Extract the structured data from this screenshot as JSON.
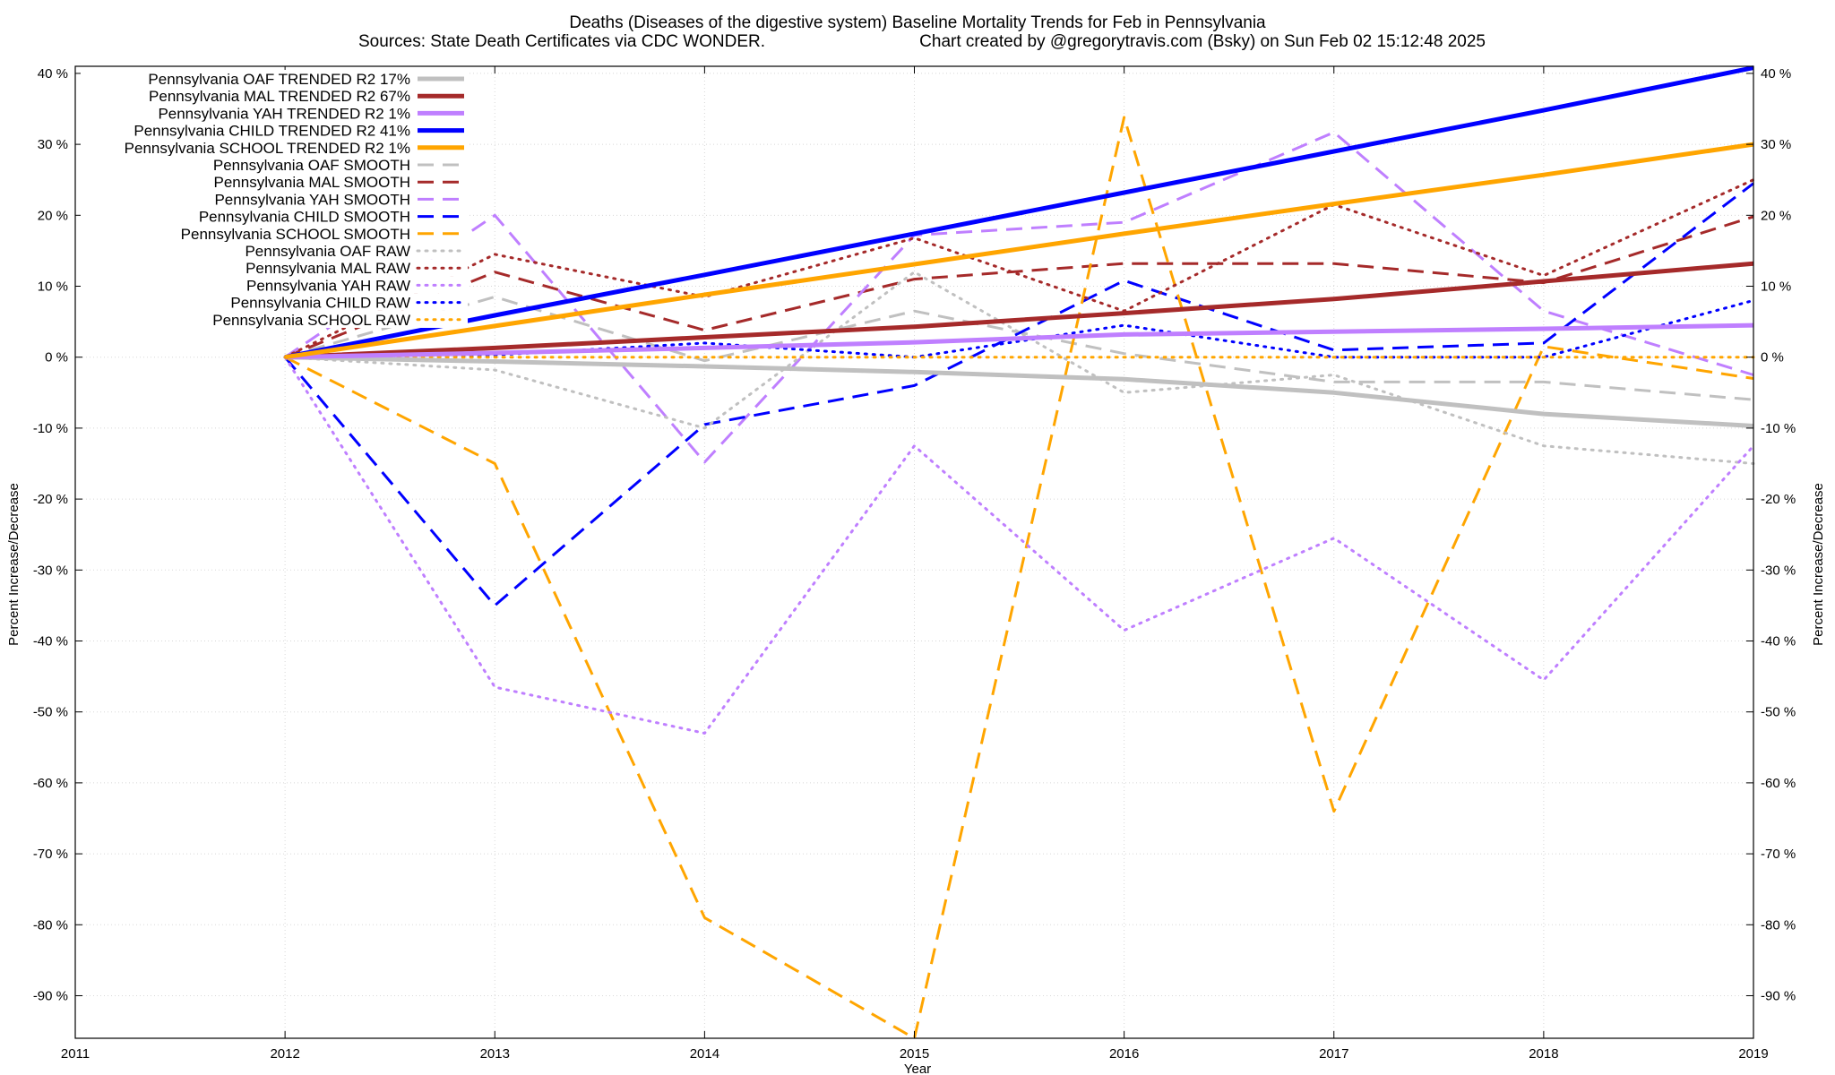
{
  "chart_data": {
    "type": "line",
    "title": "Deaths (Diseases of the digestive system)  Baseline Mortality Trends for Feb in Pennsylvania",
    "subtitle_left": "Sources: State Death Certificates via CDC WONDER.",
    "subtitle_right": "Chart created by @gregorytravis.com (Bsky) on Sun Feb 02 15:12:48 2025",
    "xlabel": "Year",
    "ylabel_left": "Percent Increase/Decrease",
    "ylabel_right": "Percent Increase/Decrease",
    "xlim": [
      2011,
      2019
    ],
    "ylim": [
      -96,
      41
    ],
    "grid": true,
    "legend_position": "top-left",
    "x_ticks": [
      2011,
      2012,
      2013,
      2014,
      2015,
      2016,
      2017,
      2018,
      2019
    ],
    "y_ticks": [
      40,
      30,
      20,
      10,
      0,
      -10,
      -20,
      -30,
      -40,
      -50,
      -60,
      -70,
      -80,
      -90
    ],
    "y_tick_labels": [
      "40 %",
      "30 %",
      "20 %",
      "10 %",
      "0 %",
      "-10 %",
      "-20 %",
      "-30 %",
      "-40 %",
      "-50 %",
      "-60 %",
      "-70 %",
      "-80 %",
      "-90 %"
    ],
    "x": [
      2012,
      2013,
      2014,
      2015,
      2016,
      2017,
      2018,
      2019
    ],
    "series": [
      {
        "name": "Pennsylvania OAF TRENDED R2  17%",
        "style": "solid",
        "color": "#c0c0c0",
        "values": [
          0,
          -0.6,
          -1.3,
          -2.1,
          -3.1,
          -5.0,
          -8.0,
          -9.7
        ]
      },
      {
        "name": "Pennsylvania MAL TRENDED R2  67%",
        "style": "solid",
        "color": "#a52a2a",
        "values": [
          0,
          1.3,
          2.8,
          4.3,
          6.2,
          8.2,
          10.7,
          13.2
        ]
      },
      {
        "name": "Pennsylvania YAH TRENDED R2   1%",
        "style": "solid",
        "color": "#bf7fff",
        "values": [
          0,
          0.6,
          1.3,
          2.1,
          3.2,
          3.6,
          4.0,
          4.5
        ]
      },
      {
        "name": "Pennsylvania CHILD TRENDED R2  41%",
        "style": "solid",
        "color": "#0000ff",
        "values": [
          0,
          5.9,
          11.6,
          17.4,
          23.2,
          29.0,
          34.8,
          40.8
        ]
      },
      {
        "name": "Pennsylvania SCHOOL TRENDED R2   1%",
        "style": "solid",
        "color": "#ffa500",
        "values": [
          0,
          4.4,
          8.8,
          13.1,
          17.4,
          21.6,
          25.7,
          30.0
        ]
      },
      {
        "name": "Pennsylvania OAF SMOOTH",
        "style": "dashed",
        "color": "#c0c0c0",
        "values": [
          0,
          8.5,
          -0.5,
          6.5,
          0.5,
          -3.5,
          -3.5,
          -6.0
        ]
      },
      {
        "name": "Pennsylvania MAL SMOOTH",
        "style": "dashed",
        "color": "#a52a2a",
        "values": [
          0,
          12.0,
          3.8,
          11.0,
          13.2,
          13.2,
          10.5,
          19.8
        ]
      },
      {
        "name": "Pennsylvania YAH SMOOTH",
        "style": "dashed",
        "color": "#bf7fff",
        "values": [
          0,
          20.0,
          -14.8,
          17.2,
          19.0,
          31.7,
          6.5,
          -2.5
        ]
      },
      {
        "name": "Pennsylvania CHILD SMOOTH",
        "style": "dashed",
        "color": "#0000ff",
        "values": [
          0,
          -35.0,
          -9.5,
          -4.0,
          10.8,
          1.0,
          2.0,
          24.5
        ]
      },
      {
        "name": "Pennsylvania SCHOOL SMOOTH",
        "style": "dashed",
        "color": "#ffa500",
        "values": [
          0,
          -15.0,
          -79.0,
          -96.0,
          33.8,
          -64.0,
          1.5,
          -3.0
        ]
      },
      {
        "name": "Pennsylvania OAF RAW",
        "style": "dotted",
        "color": "#c0c0c0",
        "values": [
          0,
          -1.8,
          -10.0,
          12.0,
          -5.0,
          -2.5,
          -12.5,
          -15.0
        ]
      },
      {
        "name": "Pennsylvania MAL RAW",
        "style": "dotted",
        "color": "#a52a2a",
        "values": [
          0,
          14.5,
          8.5,
          16.8,
          6.5,
          21.5,
          11.5,
          25.0
        ]
      },
      {
        "name": "Pennsylvania YAH RAW",
        "style": "dotted",
        "color": "#bf7fff",
        "values": [
          0,
          -46.5,
          -53.0,
          -12.5,
          -38.5,
          -25.5,
          -45.5,
          -12.5
        ]
      },
      {
        "name": "Pennsylvania CHILD RAW",
        "style": "dotted",
        "color": "#0000ff",
        "values": [
          0,
          0.3,
          2.0,
          0,
          4.5,
          0,
          0,
          8.0
        ]
      },
      {
        "name": "Pennsylvania SCHOOL RAW",
        "style": "dotted",
        "color": "#ffa500",
        "values": [
          0,
          0,
          0,
          0,
          0,
          0,
          0,
          0
        ]
      }
    ]
  }
}
